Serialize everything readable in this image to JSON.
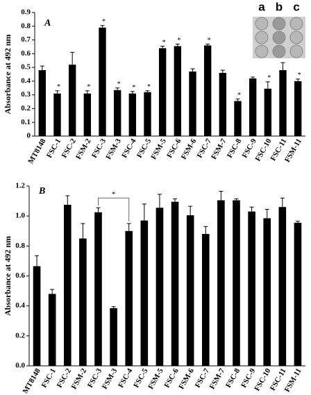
{
  "chart_data": [
    {
      "type": "bar",
      "panel_label": "A",
      "ylabel": "Absorbance at 492 nm",
      "color": "#000000",
      "categories": [
        "MT8148",
        "FSC-1",
        "FSC-2",
        "FSM-2",
        "FSC-3",
        "FSM-3",
        "FSC-4",
        "FSC-5",
        "FSM-5",
        "FSC-6",
        "FSM-6",
        "FSC-7",
        "FSM-7",
        "FSC-8",
        "FSC-9",
        "FSC-10",
        "FSC-11",
        "FSM-11"
      ],
      "values": [
        0.48,
        0.31,
        0.52,
        0.31,
        0.79,
        0.335,
        0.31,
        0.32,
        0.64,
        0.655,
        0.47,
        0.66,
        0.46,
        0.255,
        0.42,
        0.345,
        0.48,
        0.4
      ],
      "errors": [
        0.03,
        0.02,
        0.09,
        0.02,
        0.015,
        0.015,
        0.015,
        0.01,
        0.015,
        0.015,
        0.02,
        0.01,
        0.02,
        0.015,
        0.01,
        0.05,
        0.055,
        0.015
      ],
      "annotations": [
        null,
        "*",
        null,
        "*",
        "*",
        "*",
        "*",
        "*",
        "*",
        "*",
        null,
        "*",
        null,
        "*",
        null,
        "*",
        null,
        "*"
      ],
      "inset_labels": [
        "a",
        "b",
        "c"
      ],
      "ylim": [
        0,
        0.9
      ],
      "yticks": [
        0,
        0.1,
        0.2,
        0.3,
        0.4,
        0.5,
        0.6,
        0.7,
        0.8,
        0.9
      ]
    },
    {
      "type": "bar",
      "panel_label": "B",
      "ylabel": "Absorbance at 492 nm",
      "color": "#000000",
      "categories": [
        "MT8148",
        "FSC-1",
        "FSC-2",
        "FSM-2",
        "FSC-3",
        "FSM-3",
        "FSC-4",
        "FSC-5",
        "FSM-5",
        "FSC-6",
        "FSM-6",
        "FSC-7",
        "FSM-7",
        "FSC-8",
        "FSC-9",
        "FSC-10",
        "FSC-11",
        "FSM-11"
      ],
      "values": [
        0.665,
        0.48,
        1.075,
        0.85,
        1.025,
        0.385,
        0.9,
        0.97,
        1.055,
        1.095,
        1.005,
        0.88,
        1.105,
        1.105,
        1.03,
        0.985,
        1.06,
        0.955
      ],
      "errors": [
        0.07,
        0.03,
        0.06,
        0.1,
        0.03,
        0.01,
        0.05,
        0.11,
        0.09,
        0.02,
        0.06,
        0.05,
        0.06,
        0.01,
        0.03,
        0.06,
        0.06,
        0.01
      ],
      "bracket": {
        "categories": [
          "FSC-3",
          "FSC-4"
        ],
        "label": "*"
      },
      "ylim": [
        0,
        1.2
      ],
      "yticks": [
        {
          "value": 0,
          "label": "0.0"
        },
        0.2,
        0.4,
        0.6,
        0.8,
        {
          "value": 1,
          "label": "1.0"
        },
        1.2
      ]
    }
  ]
}
